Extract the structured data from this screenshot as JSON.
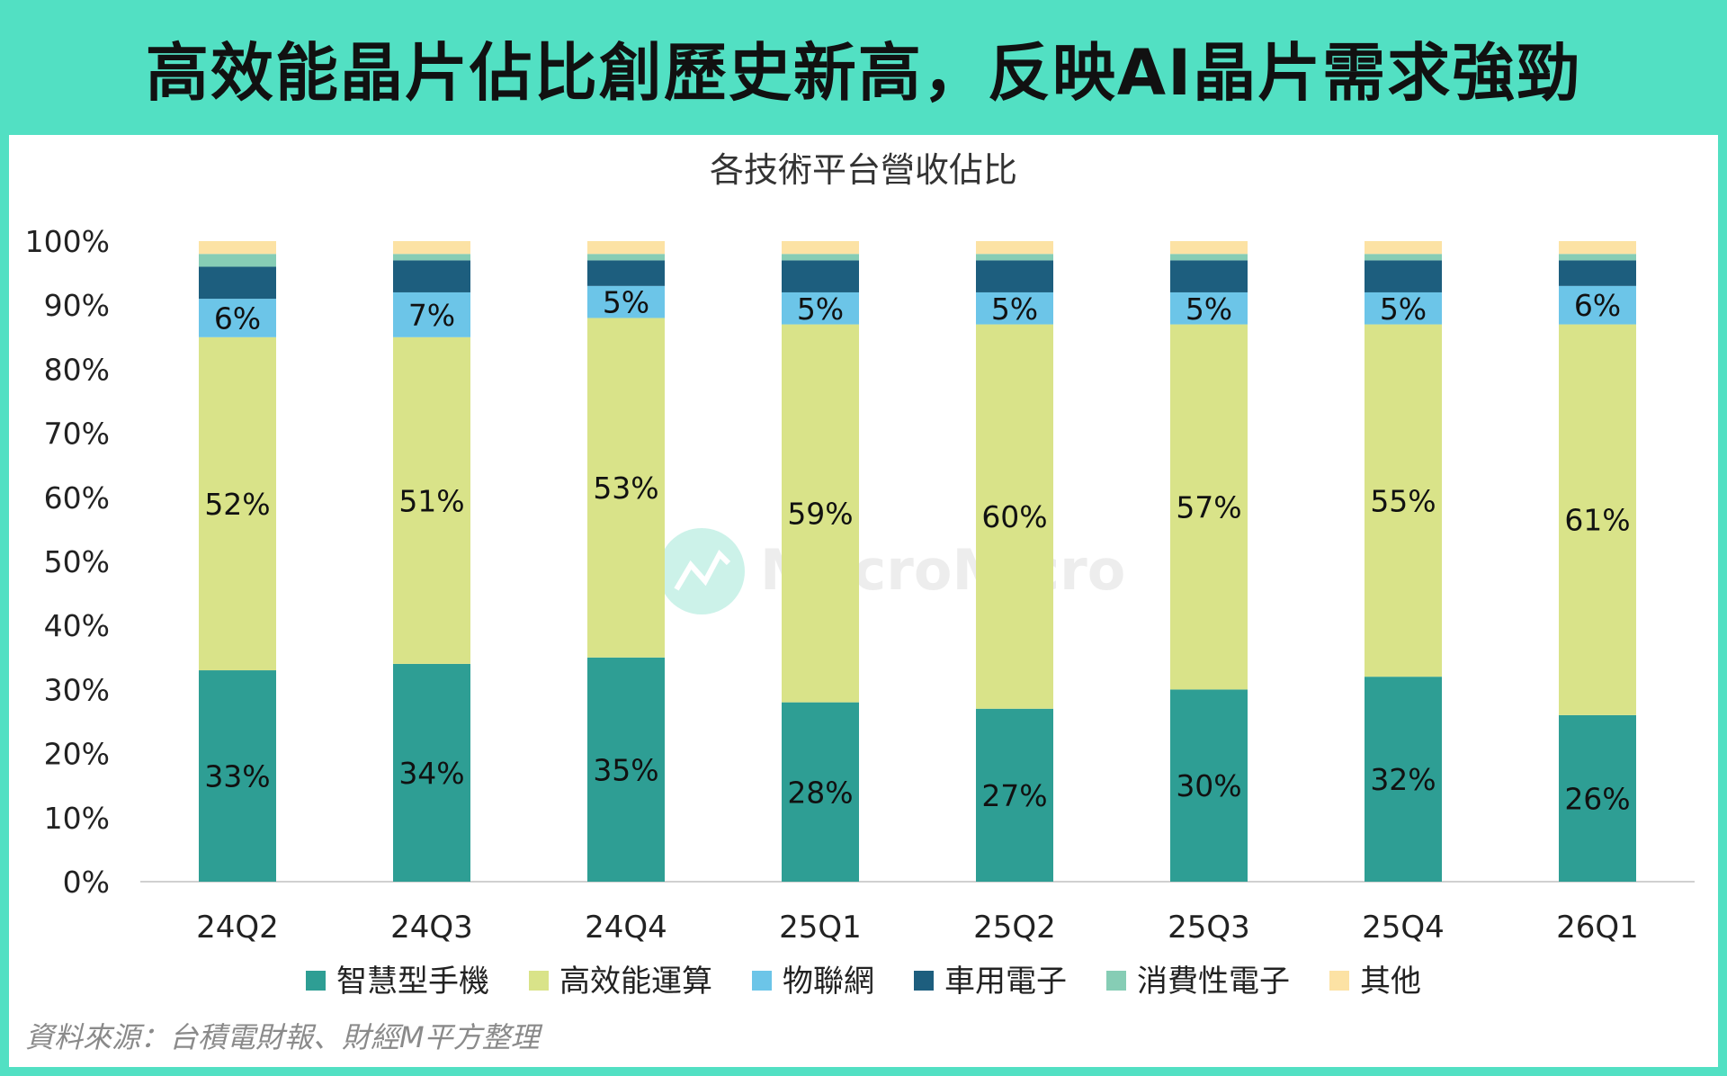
{
  "header": {
    "title": "高效能晶片佔比創歷史新高，反映AI晶片需求強勁"
  },
  "watermark": {
    "text": "MacroMicro"
  },
  "source": {
    "text": "資料來源：台積電財報、財經M平方整理"
  },
  "chart_data": {
    "type": "bar",
    "stacked": true,
    "title": "各技術平台營收佔比",
    "xlabel": "",
    "ylabel": "",
    "ylim": [
      0,
      100
    ],
    "yticks": [
      "0%",
      "10%",
      "20%",
      "30%",
      "40%",
      "50%",
      "60%",
      "70%",
      "80%",
      "90%",
      "100%"
    ],
    "legend_position": "bottom",
    "categories": [
      "24Q2",
      "24Q3",
      "24Q4",
      "25Q1",
      "25Q2",
      "25Q3",
      "25Q4",
      "26Q1"
    ],
    "series": [
      {
        "name": "智慧型手機",
        "color": "#2e9e94",
        "values": [
          33,
          34,
          35,
          28,
          27,
          30,
          32,
          26
        ],
        "labels": [
          "33%",
          "34%",
          "35%",
          "28%",
          "27%",
          "30%",
          "32%",
          "26%"
        ]
      },
      {
        "name": "高效能運算",
        "color": "#d9e389",
        "values": [
          52,
          51,
          53,
          59,
          60,
          57,
          55,
          61
        ],
        "labels": [
          "52%",
          "51%",
          "53%",
          "59%",
          "60%",
          "57%",
          "55%",
          "61%"
        ]
      },
      {
        "name": "物聯網",
        "color": "#6cc5e8",
        "values": [
          6,
          7,
          5,
          5,
          5,
          5,
          5,
          6
        ],
        "labels": [
          "6%",
          "7%",
          "5%",
          "5%",
          "5%",
          "5%",
          "5%",
          "6%"
        ]
      },
      {
        "name": "車用電子",
        "color": "#1d5e7e",
        "values": [
          5,
          5,
          4,
          5,
          5,
          5,
          5,
          4
        ],
        "labels": [
          "",
          "",
          "",
          "",
          "",
          "",
          "",
          ""
        ]
      },
      {
        "name": "消費性電子",
        "color": "#86cdb5",
        "values": [
          2,
          1,
          1,
          1,
          1,
          1,
          1,
          1
        ],
        "labels": [
          "",
          "",
          "",
          "",
          "",
          "",
          "",
          ""
        ]
      },
      {
        "name": "其他",
        "color": "#fce2a4",
        "values": [
          2,
          2,
          2,
          2,
          2,
          2,
          2,
          2
        ],
        "labels": [
          "",
          "",
          "",
          "",
          "",
          "",
          "",
          ""
        ]
      }
    ]
  }
}
